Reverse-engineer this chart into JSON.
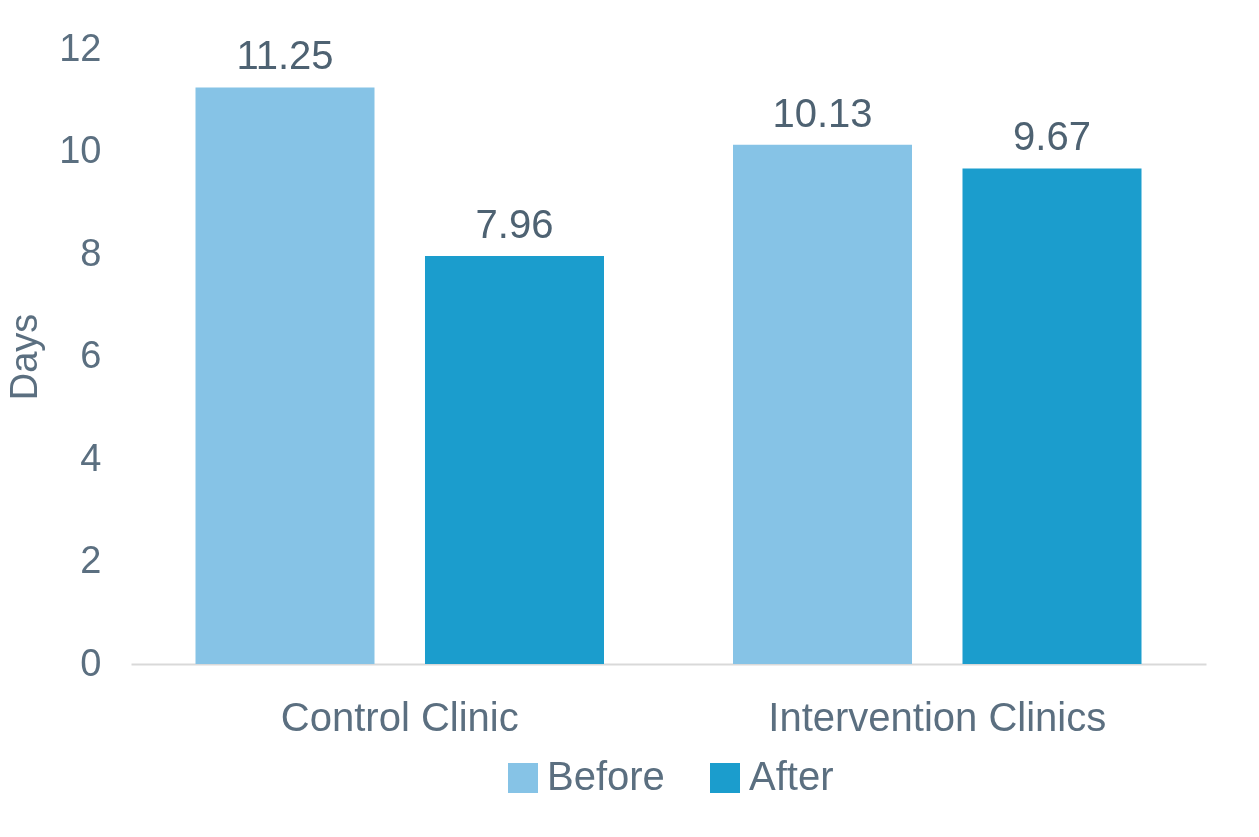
{
  "chart_data": {
    "type": "bar",
    "ylabel": "Days",
    "categories": [
      "Control Clinic",
      "Intervention Clinics"
    ],
    "series": [
      {
        "name": "Before",
        "color": "#86c3e6",
        "values": [
          11.25,
          10.13
        ]
      },
      {
        "name": "After",
        "color": "#1b9dcd",
        "values": [
          7.96,
          9.67
        ]
      }
    ],
    "ylim": [
      0,
      12
    ],
    "yticks": [
      0,
      2,
      4,
      6,
      8,
      10,
      12
    ],
    "data_labels": true,
    "legend": "bottom",
    "grid": false
  }
}
